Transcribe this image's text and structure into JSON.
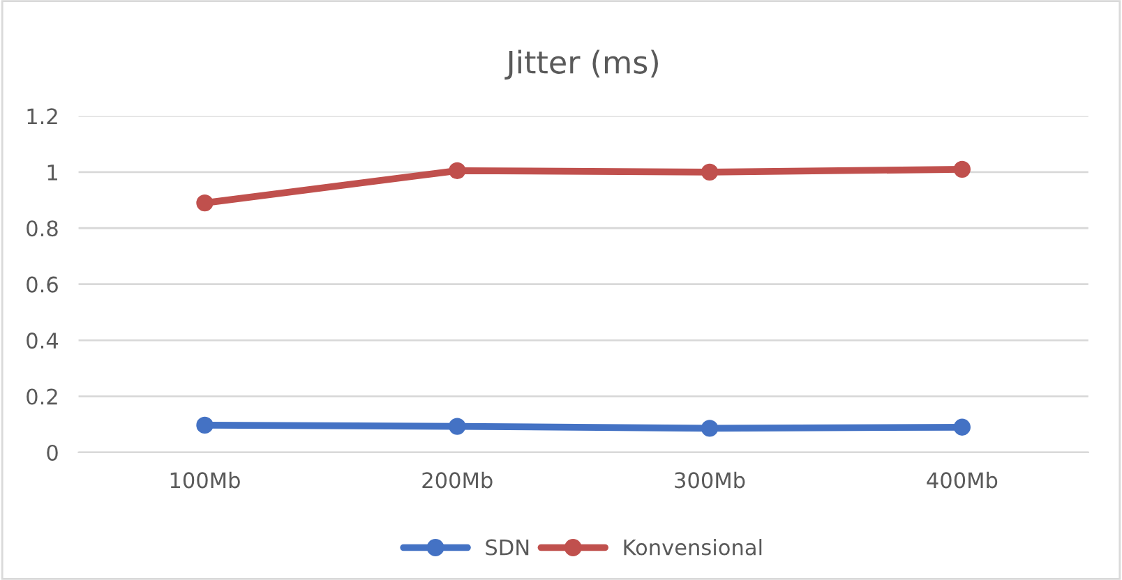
{
  "chart_data": {
    "type": "line",
    "title": "Jitter (ms)",
    "categories": [
      "100Mb",
      "200Mb",
      "300Mb",
      "400Mb"
    ],
    "series": [
      {
        "name": "SDN",
        "color": "#4472c4",
        "values": [
          0.097,
          0.093,
          0.086,
          0.09
        ]
      },
      {
        "name": "Konvensional",
        "color": "#c0504d",
        "values": [
          0.89,
          1.005,
          1.0,
          1.01
        ]
      }
    ],
    "ylim": [
      0,
      1.2
    ],
    "yticks": [
      0,
      0.2,
      0.4,
      0.6,
      0.8,
      1,
      1.2
    ],
    "grid": "y",
    "legend": "bottom",
    "marker": "circle",
    "line_style": "solid"
  }
}
